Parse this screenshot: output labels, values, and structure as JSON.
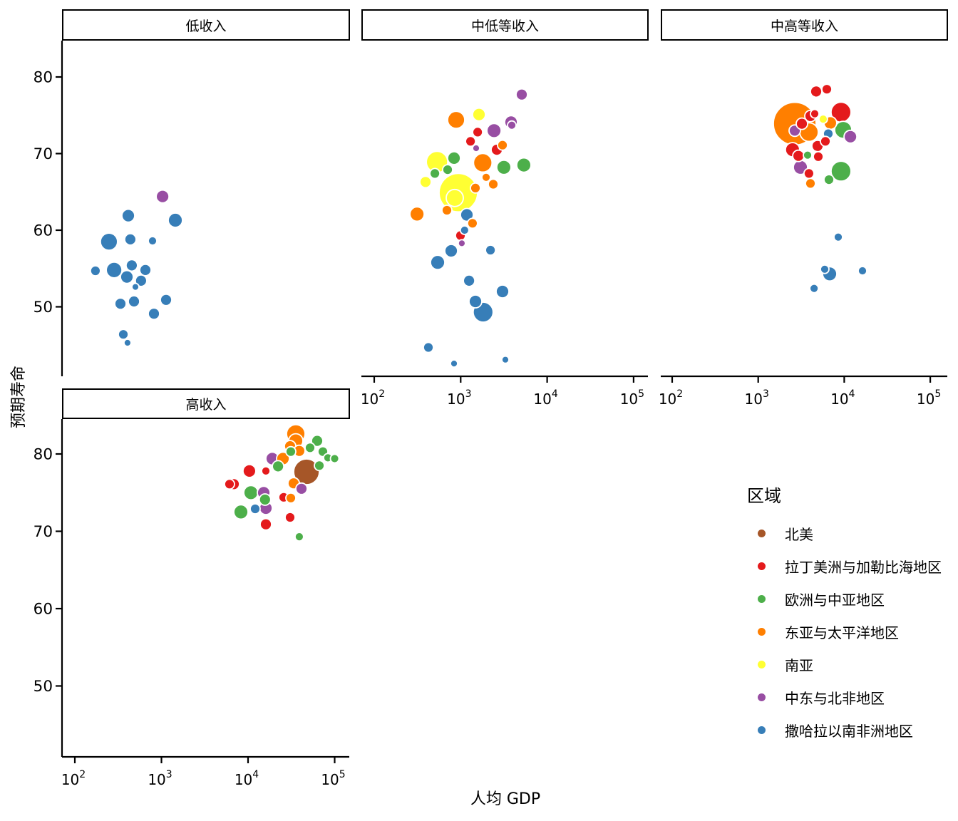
{
  "figure": {
    "x_axis_title": "人均 GDP",
    "y_axis_title": "预期寿命",
    "background": "#ffffff",
    "axis_color": "#000000"
  },
  "legend": {
    "title": "区域",
    "items": [
      {
        "code": "NA",
        "label": "北美",
        "color": "#a65628"
      },
      {
        "code": "LAC",
        "label": "拉丁美洲与加勒比海地区",
        "color": "#e41a1c"
      },
      {
        "code": "ECA",
        "label": "欧洲与中亚地区",
        "color": "#4daf4a"
      },
      {
        "code": "EAP",
        "label": "东亚与太平洋地区",
        "color": "#ff7f00"
      },
      {
        "code": "SA",
        "label": "南亚",
        "color": "#ffff33"
      },
      {
        "code": "MENA",
        "label": "中东与北非地区",
        "color": "#984ea3"
      },
      {
        "code": "SSA",
        "label": "撒哈拉以南非洲地区",
        "color": "#377eb8"
      }
    ]
  },
  "chart_data": {
    "type": "scatter",
    "title": "",
    "xlabel": "人均 GDP",
    "ylabel": "预期寿命",
    "x_scale": "log10",
    "x_tick_exponents": [
      2,
      3,
      4,
      5
    ],
    "y_ticks": [
      80,
      70,
      60,
      50
    ],
    "grid": false,
    "legend_position": "right",
    "point_format": [
      "gdp_per_capita",
      "life_expectancy",
      "bubble_radius_px",
      "region_code"
    ],
    "facets": [
      {
        "label": "低收入",
        "points": [
          [
            1030,
            64.4,
            9,
            "MENA"
          ],
          [
            414,
            61.9,
            9,
            "SSA"
          ],
          [
            1446,
            61.3,
            10,
            "SSA"
          ],
          [
            248,
            58.5,
            12,
            "SSA"
          ],
          [
            438,
            58.8,
            8,
            "SSA"
          ],
          [
            789,
            58.6,
            6,
            "SSA"
          ],
          [
            173,
            54.7,
            7,
            "SSA"
          ],
          [
            284,
            54.8,
            11,
            "SSA"
          ],
          [
            455,
            55.4,
            8,
            "SSA"
          ],
          [
            399,
            53.9,
            9,
            "SSA"
          ],
          [
            582,
            53.4,
            8,
            "SSA"
          ],
          [
            653,
            54.8,
            8,
            "SSA"
          ],
          [
            501,
            52.6,
            5,
            "SSA"
          ],
          [
            336,
            50.4,
            8,
            "SSA"
          ],
          [
            482,
            50.7,
            8,
            "SSA"
          ],
          [
            1131,
            50.9,
            8,
            "SSA"
          ],
          [
            819,
            49.1,
            8,
            "SSA"
          ],
          [
            363,
            46.4,
            7,
            "SSA"
          ],
          [
            406,
            45.3,
            5,
            "SSA"
          ]
        ]
      },
      {
        "label": "中低等收入",
        "points": [
          [
            5090,
            77.7,
            8,
            "MENA"
          ],
          [
            888,
            74.4,
            12,
            "EAP"
          ],
          [
            1630,
            75.1,
            9,
            "SA"
          ],
          [
            3830,
            74.1,
            9,
            "MENA"
          ],
          [
            2430,
            73.0,
            10,
            "MENA"
          ],
          [
            3900,
            73.7,
            6,
            "MENA"
          ],
          [
            1570,
            72.8,
            7,
            "LAC"
          ],
          [
            1300,
            71.6,
            7,
            "LAC"
          ],
          [
            3050,
            71.1,
            7,
            "EAP"
          ],
          [
            2620,
            70.5,
            8,
            "LAC"
          ],
          [
            1510,
            70.7,
            5,
            "MENA"
          ],
          [
            1800,
            68.8,
            13,
            "EAP"
          ],
          [
            838,
            69.4,
            9,
            "ECA"
          ],
          [
            3160,
            68.2,
            10,
            "ECA"
          ],
          [
            5380,
            68.5,
            10,
            "ECA"
          ],
          [
            532,
            68.9,
            15,
            "SA"
          ],
          [
            503,
            67.4,
            7,
            "ECA"
          ],
          [
            706,
            67.9,
            7,
            "ECA"
          ],
          [
            392,
            66.3,
            8,
            "SA"
          ],
          [
            1970,
            66.9,
            6,
            "EAP"
          ],
          [
            2380,
            66.0,
            7,
            "EAP"
          ],
          [
            939,
            64.9,
            27,
            "SA"
          ],
          [
            855,
            64.2,
            12,
            "SA"
          ],
          [
            1480,
            65.5,
            7,
            "EAP"
          ],
          [
            313,
            62.1,
            10,
            "EAP"
          ],
          [
            693,
            62.6,
            7,
            "EAP"
          ],
          [
            1180,
            62.0,
            9,
            "SSA"
          ],
          [
            1370,
            60.9,
            7,
            "EAP"
          ],
          [
            994,
            59.3,
            7,
            "LAC"
          ],
          [
            1110,
            60.0,
            6,
            "SSA"
          ],
          [
            1030,
            58.3,
            5,
            "MENA"
          ],
          [
            777,
            57.3,
            9,
            "SSA"
          ],
          [
            2210,
            57.4,
            7,
            "SSA"
          ],
          [
            542,
            55.8,
            10,
            "SSA"
          ],
          [
            1250,
            53.4,
            8,
            "SSA"
          ],
          [
            3050,
            52.0,
            9,
            "SSA"
          ],
          [
            1480,
            50.7,
            9,
            "SSA"
          ],
          [
            1820,
            49.3,
            14,
            "SSA"
          ],
          [
            423,
            44.7,
            7,
            "SSA"
          ],
          [
            838,
            42.6,
            5,
            "SSA"
          ],
          [
            3290,
            43.1,
            5,
            "SSA"
          ]
        ]
      },
      {
        "label": "中高等收入",
        "points": [
          [
            4720,
            78.1,
            8,
            "LAC"
          ],
          [
            6280,
            78.4,
            7,
            "LAC"
          ],
          [
            2660,
            73.9,
            30,
            "EAP"
          ],
          [
            9180,
            75.4,
            14,
            "LAC"
          ],
          [
            4050,
            74.9,
            8,
            "LAC"
          ],
          [
            5700,
            74.5,
            6,
            "SA"
          ],
          [
            6900,
            74.0,
            9,
            "EAP"
          ],
          [
            9730,
            73.1,
            12,
            "ECA"
          ],
          [
            6520,
            72.6,
            7,
            "SSA"
          ],
          [
            3900,
            72.8,
            13,
            "EAP"
          ],
          [
            2660,
            73.0,
            8,
            "MENA"
          ],
          [
            3220,
            73.9,
            8,
            "LAC"
          ],
          [
            4540,
            75.2,
            6,
            "LAC"
          ],
          [
            11800,
            72.2,
            9,
            "MENA"
          ],
          [
            6040,
            71.6,
            7,
            "LAC"
          ],
          [
            4900,
            71.0,
            8,
            "LAC"
          ],
          [
            2510,
            70.5,
            10,
            "LAC"
          ],
          [
            2930,
            69.7,
            8,
            "LAC"
          ],
          [
            3750,
            69.8,
            6,
            "ECA"
          ],
          [
            4990,
            69.6,
            7,
            "LAC"
          ],
          [
            3100,
            68.2,
            10,
            "MENA"
          ],
          [
            3890,
            67.4,
            7,
            "LAC"
          ],
          [
            4050,
            66.1,
            7,
            "EAP"
          ],
          [
            9180,
            67.7,
            14,
            "ECA"
          ],
          [
            6650,
            66.6,
            7,
            "ECA"
          ],
          [
            8520,
            59.1,
            6,
            "SSA"
          ],
          [
            5930,
            54.9,
            6,
            "SSA"
          ],
          [
            6780,
            54.3,
            10,
            "SSA"
          ],
          [
            16300,
            54.7,
            6,
            "SSA"
          ],
          [
            4460,
            52.4,
            6,
            "SSA"
          ]
        ]
      },
      {
        "label": "高收入",
        "points": [
          [
            35600,
            82.6,
            13,
            "EAP"
          ],
          [
            35600,
            81.7,
            10,
            "EAP"
          ],
          [
            62800,
            81.7,
            8,
            "ECA"
          ],
          [
            52000,
            80.8,
            7,
            "ECA"
          ],
          [
            73100,
            80.3,
            7,
            "ECA"
          ],
          [
            83500,
            79.5,
            6,
            "ECA"
          ],
          [
            100000,
            79.4,
            6,
            "ECA"
          ],
          [
            30600,
            81.0,
            8,
            "EAP"
          ],
          [
            31200,
            80.3,
            7,
            "ECA"
          ],
          [
            39100,
            80.4,
            8,
            "EAP"
          ],
          [
            19050,
            79.4,
            9,
            "MENA"
          ],
          [
            25300,
            79.4,
            9,
            "EAP"
          ],
          [
            22200,
            78.4,
            8,
            "ECA"
          ],
          [
            47300,
            77.7,
            18,
            "NA"
          ],
          [
            66500,
            78.5,
            7,
            "ECA"
          ],
          [
            10370,
            77.8,
            9,
            "LAC"
          ],
          [
            16070,
            77.8,
            6,
            "LAC"
          ],
          [
            6110,
            76.1,
            7,
            "LAC"
          ],
          [
            6840,
            76.1,
            8,
            "LAC"
          ],
          [
            10790,
            75.0,
            10,
            "ECA"
          ],
          [
            15170,
            75.0,
            9,
            "MENA"
          ],
          [
            33600,
            76.2,
            8,
            "EAP"
          ],
          [
            41400,
            75.5,
            8,
            "MENA"
          ],
          [
            25800,
            74.4,
            7,
            "LAC"
          ],
          [
            31200,
            74.3,
            7,
            "EAP"
          ],
          [
            15700,
            74.1,
            8,
            "ECA"
          ],
          [
            12080,
            72.9,
            7,
            "SSA"
          ],
          [
            16070,
            73.0,
            9,
            "MENA"
          ],
          [
            8280,
            72.5,
            10,
            "ECA"
          ],
          [
            30600,
            71.8,
            7,
            "LAC"
          ],
          [
            16070,
            70.9,
            8,
            "LAC"
          ],
          [
            39100,
            69.3,
            6,
            "ECA"
          ]
        ]
      }
    ]
  }
}
